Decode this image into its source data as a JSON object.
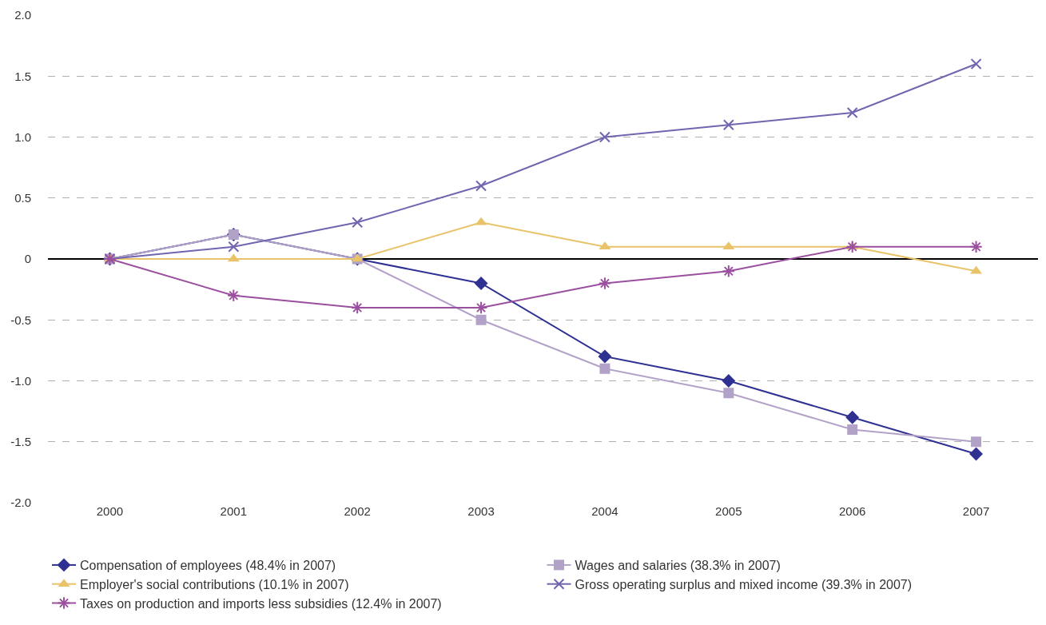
{
  "chart_data": {
    "type": "line",
    "categories": [
      "2000",
      "2001",
      "2002",
      "2003",
      "2004",
      "2005",
      "2006",
      "2007"
    ],
    "series": [
      {
        "name": "Compensation of employees (48.4% in 2007)",
        "color": "#2e3192",
        "marker": "diamond",
        "values": [
          0,
          0.2,
          0,
          -0.2,
          -0.8,
          -1.0,
          -1.3,
          -1.6
        ]
      },
      {
        "name": "Wages and salaries (38.3% in 2007)",
        "color": "#b3a2c8",
        "marker": "square",
        "values": [
          0,
          0.2,
          0,
          -0.5,
          -0.9,
          -1.1,
          -1.4,
          -1.5
        ]
      },
      {
        "name": "Employer's social contributions (10.1% in 2007)",
        "color": "#e8c36a",
        "marker": "triangle",
        "values": [
          0,
          0,
          0,
          0.3,
          0.1,
          0.1,
          0.1,
          -0.1
        ]
      },
      {
        "name": "Gross operating surplus and mixed income (39.3% in 2007)",
        "color": "#7066b0",
        "marker": "cross",
        "values": [
          0,
          0.1,
          0.3,
          0.6,
          1.0,
          1.1,
          1.2,
          1.6
        ]
      },
      {
        "name": "Taxes on production and imports less subsidies (12.4% in 2007)",
        "color": "#9b4f9f",
        "marker": "cross",
        "values": [
          0,
          -0.3,
          -0.4,
          -0.4,
          -0.2,
          -0.1,
          0.1,
          0.1
        ]
      }
    ],
    "ylim": [
      -2,
      2
    ],
    "yticks": [
      {
        "value": 2,
        "label": "2.0"
      },
      1.5,
      {
        "value": 1,
        "label": "1.0"
      },
      0.5,
      0,
      -0.5,
      {
        "value": -1,
        "label": "-1.0"
      },
      -1.5,
      {
        "value": -2,
        "label": "-2.0"
      }
    ],
    "grid": "y",
    "legend": "bottom",
    "line_style": "solid"
  }
}
